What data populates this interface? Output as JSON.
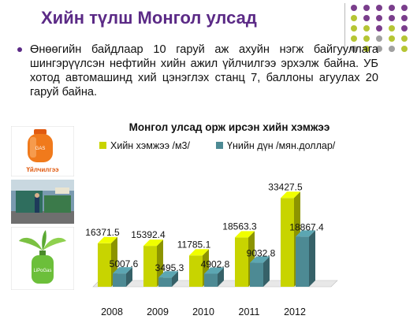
{
  "slide": {
    "title": "Хийн түлш Монгол улсад",
    "bullet": "Өнөөгийн байдлаар 10 гаруй аж ахуйн нэгж байгууллага шингэрүүлсэн нефтийн хийн ажил үйлчилгээ эрхэлж байна. УБ хотод автомашинд хий цэнэглэх станц 7, баллоны агуулах 20 гаруй байна.",
    "cylinder_label": "Үйлчилгээ",
    "green_tank_label": "LiPoGas"
  },
  "colors": {
    "title": "#5b2a86",
    "series_1": "#c8d400",
    "series_2": "#4d8a94",
    "dot_purple": "#7a3e8c",
    "dot_green": "#b5c534",
    "dot_gray": "#a0a0a0"
  },
  "icons": [
    "gas-cylinder-icon",
    "gas-station-photo",
    "green-tank-icon"
  ],
  "chart_data": {
    "type": "bar",
    "title": "Монгол улсад орж ирсэн хийн хэмжээ",
    "categories": [
      "2008",
      "2009",
      "2010",
      "2011",
      "2012"
    ],
    "series": [
      {
        "name": "Хийн хэмжээ /м3/",
        "values": [
          16371.5,
          15392.4,
          11785.1,
          18563.3,
          33427.5
        ],
        "labels": [
          "16371.5",
          "15392.4",
          "11785.1",
          "18563.3",
          "33427.5"
        ]
      },
      {
        "name": "Үнийн дүн /мян.доллар/",
        "values": [
          5007.6,
          3495.3,
          4902.8,
          9032.8,
          18867.4
        ],
        "labels": [
          "5007.6",
          "3495.3",
          "4902.8",
          "9032.8",
          "18867.4"
        ]
      }
    ],
    "legend_position": "top",
    "three_d": true,
    "ylim": [
      0,
      35000
    ],
    "grid": false
  }
}
